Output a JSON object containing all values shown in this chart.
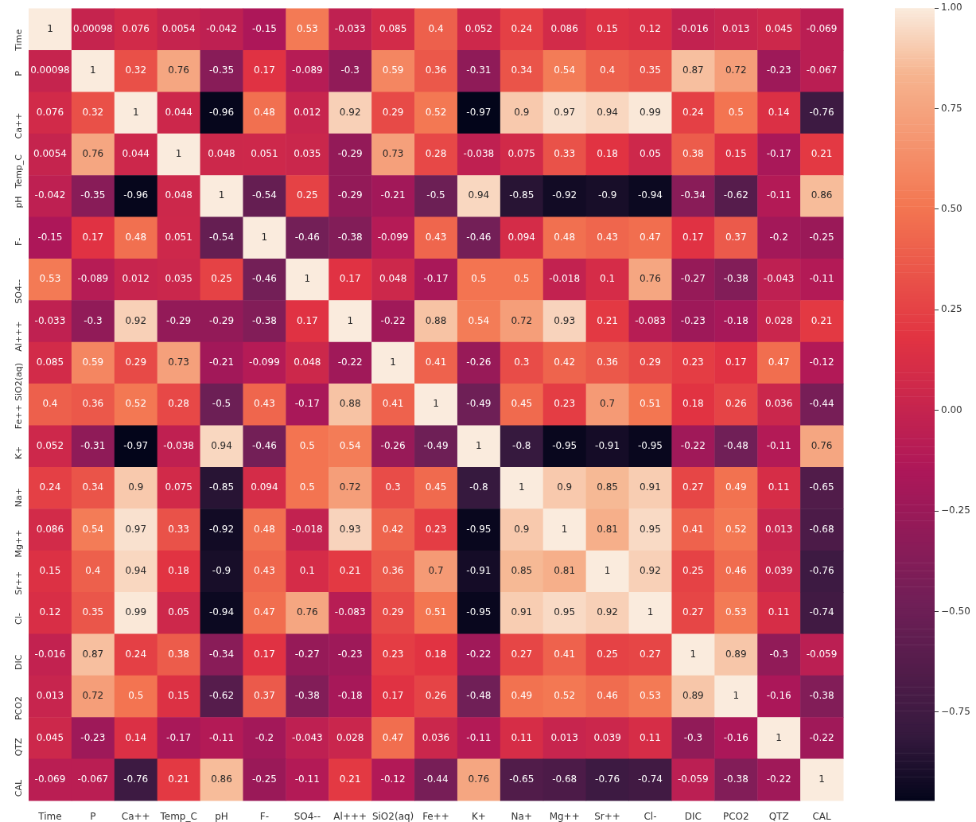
{
  "chart_data": {
    "type": "heatmap",
    "categories": [
      "Time",
      "P",
      "Ca++",
      "Temp_C",
      "pH",
      "F-",
      "SO4--",
      "Al+++",
      "SiO2(aq)",
      "Fe++",
      "K+",
      "Na+",
      "Mg++",
      "Sr++",
      "Cl-",
      "DIC",
      "PCO2",
      "QTZ",
      "CAL"
    ],
    "y_categories": [
      "Time",
      "P",
      "Ca++",
      "Temp_C",
      "pH",
      "F-",
      "SO4--",
      "Al+++",
      "SiO2(aq)",
      "Fe++",
      "K+",
      "Na+",
      "Mg++",
      "Sr++",
      "Cl-",
      "DIC",
      "PCO2",
      "QTZ",
      "CAL"
    ],
    "cells": [
      [
        1,
        0.00098,
        0.076,
        0.0054,
        -0.042,
        -0.15,
        0.53,
        -0.033,
        0.085,
        0.4,
        0.052,
        0.24,
        0.086,
        0.15,
        0.12,
        -0.016,
        0.013,
        0.045,
        -0.069
      ],
      [
        0.00098,
        1,
        0.32,
        0.76,
        -0.35,
        0.17,
        -0.089,
        -0.3,
        0.59,
        0.36,
        -0.31,
        0.34,
        0.54,
        0.4,
        0.35,
        0.87,
        0.72,
        -0.23,
        -0.067
      ],
      [
        0.076,
        0.32,
        1,
        0.044,
        -0.96,
        0.48,
        0.012,
        0.92,
        0.29,
        0.52,
        -0.97,
        0.9,
        0.97,
        0.94,
        0.99,
        0.24,
        0.5,
        0.14,
        -0.76
      ],
      [
        0.0054,
        0.76,
        0.044,
        1,
        0.048,
        0.051,
        0.035,
        -0.29,
        0.73,
        0.28,
        -0.038,
        0.075,
        0.33,
        0.18,
        0.05,
        0.38,
        0.15,
        -0.17,
        0.21
      ],
      [
        -0.042,
        -0.35,
        -0.96,
        0.048,
        1,
        -0.54,
        0.25,
        -0.29,
        -0.21,
        -0.5,
        0.94,
        -0.85,
        -0.92,
        -0.9,
        -0.94,
        -0.34,
        -0.62,
        -0.11,
        0.86
      ],
      [
        -0.15,
        0.17,
        0.48,
        0.051,
        -0.54,
        1,
        -0.46,
        -0.38,
        -0.099,
        0.43,
        -0.46,
        0.094,
        0.48,
        0.43,
        0.47,
        0.17,
        0.37,
        -0.2,
        -0.25
      ],
      [
        0.53,
        -0.089,
        0.012,
        0.035,
        0.25,
        -0.46,
        1,
        0.17,
        0.048,
        -0.17,
        0.5,
        0.5,
        -0.018,
        0.1,
        0.76,
        -0.27,
        -0.38,
        -0.043,
        -0.11
      ],
      [
        -0.033,
        -0.3,
        0.92,
        -0.29,
        -0.29,
        -0.38,
        0.17,
        1,
        -0.22,
        0.88,
        0.54,
        0.72,
        0.93,
        0.21,
        -0.083,
        -0.23,
        -0.18,
        0.028,
        0.21
      ],
      [
        0.085,
        0.59,
        0.29,
        0.73,
        -0.21,
        -0.099,
        0.048,
        -0.22,
        1,
        0.41,
        -0.26,
        0.3,
        0.42,
        0.36,
        0.29,
        0.23,
        0.17,
        0.47,
        -0.12
      ],
      [
        0.4,
        0.36,
        0.52,
        0.28,
        -0.5,
        0.43,
        -0.17,
        0.88,
        0.41,
        1,
        -0.49,
        0.45,
        0.23,
        0.7,
        0.51,
        0.18,
        0.26,
        0.036,
        -0.44
      ],
      [
        0.052,
        -0.31,
        -0.97,
        -0.038,
        0.94,
        -0.46,
        0.5,
        0.54,
        -0.26,
        -0.49,
        1,
        -0.8,
        -0.95,
        -0.91,
        -0.95,
        -0.22,
        -0.48,
        -0.11,
        0.76
      ],
      [
        0.24,
        0.34,
        0.9,
        0.075,
        -0.85,
        0.094,
        0.5,
        0.72,
        0.3,
        0.45,
        -0.8,
        1,
        0.9,
        0.85,
        0.91,
        0.27,
        0.49,
        0.11,
        -0.65
      ],
      [
        0.086,
        0.54,
        0.97,
        0.33,
        -0.92,
        0.48,
        -0.018,
        0.93,
        0.42,
        0.23,
        -0.95,
        0.9,
        1,
        0.81,
        0.95,
        0.41,
        0.52,
        0.013,
        -0.68
      ],
      [
        0.15,
        0.4,
        0.94,
        0.18,
        -0.9,
        0.43,
        0.1,
        0.21,
        0.36,
        0.7,
        -0.91,
        0.85,
        0.81,
        1,
        0.92,
        0.25,
        0.46,
        0.039,
        -0.76
      ],
      [
        0.12,
        0.35,
        0.99,
        0.05,
        -0.94,
        0.47,
        0.76,
        -0.083,
        0.29,
        0.51,
        -0.95,
        0.91,
        0.95,
        0.92,
        1,
        0.27,
        0.53,
        0.11,
        -0.74
      ],
      [
        -0.016,
        0.87,
        0.24,
        0.38,
        -0.34,
        0.17,
        -0.27,
        -0.23,
        0.23,
        0.18,
        -0.22,
        0.27,
        0.41,
        0.25,
        0.27,
        1,
        0.89,
        -0.3,
        -0.059
      ],
      [
        0.013,
        0.72,
        0.5,
        0.15,
        -0.62,
        0.37,
        -0.38,
        -0.18,
        0.17,
        0.26,
        -0.48,
        0.49,
        0.52,
        0.46,
        0.53,
        0.89,
        1,
        -0.16,
        -0.38
      ],
      [
        0.045,
        -0.23,
        0.14,
        -0.17,
        -0.11,
        -0.2,
        -0.043,
        0.028,
        0.47,
        0.036,
        -0.11,
        0.11,
        0.013,
        0.039,
        0.11,
        -0.3,
        -0.16,
        1,
        -0.22
      ],
      [
        -0.069,
        -0.067,
        -0.76,
        0.21,
        0.86,
        -0.25,
        -0.11,
        0.21,
        -0.12,
        -0.44,
        0.76,
        -0.65,
        -0.68,
        -0.76,
        -0.74,
        -0.059,
        -0.38,
        -0.22,
        1
      ]
    ],
    "clim": [
      -0.97,
      1
    ],
    "cticks": [
      {
        "value": -0.75,
        "label": "−0.75"
      },
      {
        "value": -0.5,
        "label": "−0.50"
      },
      {
        "value": -0.25,
        "label": "−0.25"
      },
      {
        "value": 0,
        "label": "0.00"
      },
      {
        "value": 0.25,
        "label": "0.25"
      },
      {
        "value": 0.5,
        "label": "0.50"
      },
      {
        "value": 0.75,
        "label": "0.75"
      },
      {
        "value": 1,
        "label": "1.00"
      }
    ],
    "data_labels": true
  }
}
